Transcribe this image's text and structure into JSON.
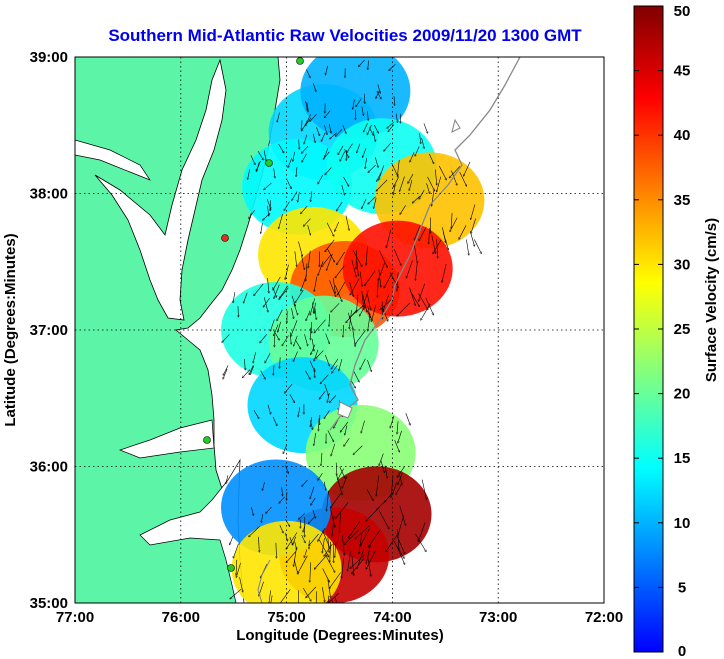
{
  "chart_data": {
    "type": "heatmap",
    "title": "Southern Mid-Atlantic Raw Velocities 2009/11/20 1300 GMT",
    "xlabel": "Longitude (Degrees:Minutes)",
    "ylabel": "Latitude (Degrees:Minutes)",
    "x_ticks": [
      "77:00",
      "76:00",
      "75:00",
      "74:00",
      "73:00",
      "72:00"
    ],
    "y_ticks": [
      "39:00",
      "38:00",
      "37:00",
      "36:00",
      "35:00"
    ],
    "xlim": [
      -77,
      -72
    ],
    "ylim": [
      35,
      39
    ],
    "grid": true,
    "colorbar": {
      "label": "Surface Velocity (cm/s)",
      "ticks": [
        "50",
        "45",
        "40",
        "35",
        "30",
        "25",
        "20",
        "15",
        "10",
        "5",
        "0"
      ],
      "range": [
        0,
        50
      ],
      "colormap": [
        "#0000ff",
        "#0080ff",
        "#00ffff",
        "#80ff80",
        "#ffff00",
        "#ff8000",
        "#ff0000",
        "#800000"
      ]
    },
    "colors": {
      "land": "#5cf5a8",
      "water": "#ffffff",
      "coast_line": "#000000",
      "bathymetry_contour": "#888888",
      "radar_site": "#22cc22",
      "radar_site_alt": "#e03020"
    },
    "regions": [
      {
        "lon": -74.65,
        "lat": 38.45,
        "speed": 12
      },
      {
        "lon": -74.35,
        "lat": 38.75,
        "speed": 10
      },
      {
        "lon": -74.9,
        "lat": 38.05,
        "speed": 14
      },
      {
        "lon": -74.1,
        "lat": 38.2,
        "speed": 15
      },
      {
        "lon": -73.65,
        "lat": 37.95,
        "speed": 32
      },
      {
        "lon": -74.75,
        "lat": 37.55,
        "speed": 30
      },
      {
        "lon": -74.45,
        "lat": 37.3,
        "speed": 38
      },
      {
        "lon": -73.95,
        "lat": 37.45,
        "speed": 42
      },
      {
        "lon": -75.1,
        "lat": 37.0,
        "speed": 16
      },
      {
        "lon": -74.65,
        "lat": 36.9,
        "speed": 20
      },
      {
        "lon": -74.85,
        "lat": 36.45,
        "speed": 12
      },
      {
        "lon": -74.3,
        "lat": 36.1,
        "speed": 22
      },
      {
        "lon": -74.15,
        "lat": 35.65,
        "speed": 48
      },
      {
        "lon": -74.55,
        "lat": 35.35,
        "speed": 46
      },
      {
        "lon": -75.1,
        "lat": 35.7,
        "speed": 8
      },
      {
        "lon": -75.0,
        "lat": 35.25,
        "speed": 30
      }
    ]
  }
}
